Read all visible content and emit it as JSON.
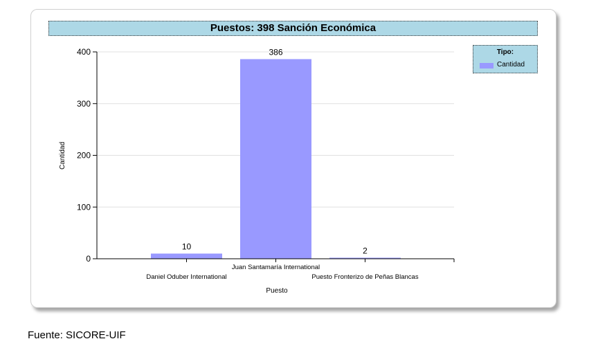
{
  "chart_data": {
    "type": "bar",
    "title": "Puestos: 398 Sanción Económica",
    "categories": [
      "Daniel Oduber International",
      "Juan Santamaría International",
      "Puesto Fronterizo de Peñas Blancas"
    ],
    "series": [
      {
        "name": "Cantidad",
        "values": [
          10,
          386,
          2
        ]
      }
    ],
    "data_labels": [
      "10",
      "386",
      "2"
    ],
    "xlabel": "Puesto",
    "ylabel": "Cantidad",
    "ylim": [
      0,
      400
    ],
    "yticks": [
      0,
      100,
      200,
      300,
      400
    ],
    "ytick_labels": [
      "0",
      "100",
      "200",
      "300",
      "400"
    ],
    "grid": true,
    "legend": {
      "title": "Tipo:",
      "placement": "top-right"
    },
    "bar_color": "#9999ff",
    "title_bg_color": "#add8e6"
  },
  "footer": {
    "source": "Fuente: SICORE-UIF"
  }
}
